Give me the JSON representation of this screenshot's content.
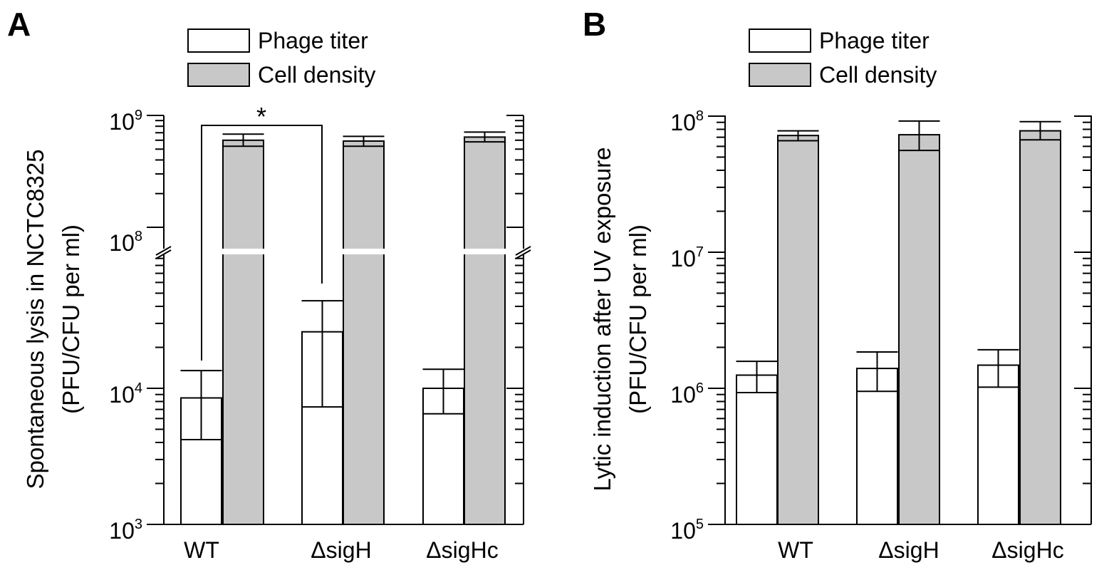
{
  "figure": {
    "legend": {
      "phage_label": "Phage titer",
      "cell_label": "Cell density"
    },
    "colors": {
      "phage_fill": "#ffffff",
      "cell_fill": "#c8c8c8",
      "stroke": "#000000",
      "break_gap": "#ffffff"
    },
    "significance_marker": "*"
  },
  "chart_data": [
    {
      "type": "bar",
      "panel_label": "A",
      "title": "",
      "ylabel_line1": "Spontaneous lysis in NCTC8325",
      "ylabel_line2": "(PFU/CFU per ml)",
      "y_scale": "log",
      "y_axis_break": true,
      "y_segments": [
        {
          "ylim": [
            1000,
            50000
          ]
        },
        {
          "ylim": [
            80000000,
            1000000000
          ]
        }
      ],
      "y_ticks": [
        {
          "value": 1000,
          "label_base": "10",
          "label_exp": "3"
        },
        {
          "value": 10000,
          "label_base": "10",
          "label_exp": "4"
        },
        {
          "value": 100000000,
          "label_base": "10",
          "label_exp": "8"
        },
        {
          "value": 1000000000,
          "label_base": "10",
          "label_exp": "9"
        }
      ],
      "categories": [
        "WT",
        "ΔsigH",
        "ΔsigHc"
      ],
      "series": [
        {
          "name": "Phage titer",
          "values": [
            8500,
            26000,
            10000
          ],
          "err_low": [
            4200,
            7300,
            6500
          ],
          "err_high": [
            13500,
            44000,
            13800
          ]
        },
        {
          "name": "Cell density",
          "values": [
            600000000,
            590000000,
            640000000
          ],
          "err_low": [
            530000000,
            530000000,
            580000000
          ],
          "err_high": [
            680000000,
            650000000,
            710000000
          ]
        }
      ],
      "legend_position": "top",
      "grid": false,
      "significance": {
        "from_category": 0,
        "to_category": 1,
        "marker": "*"
      }
    },
    {
      "type": "bar",
      "panel_label": "B",
      "title": "",
      "ylabel_line1": "Lytic induction after UV exposure",
      "ylabel_line2": "(PFU/CFU per ml)",
      "y_scale": "log",
      "ylim": [
        100000,
        100000000
      ],
      "y_ticks": [
        {
          "value": 100000,
          "label_base": "10",
          "label_exp": "5"
        },
        {
          "value": 1000000,
          "label_base": "10",
          "label_exp": "6"
        },
        {
          "value": 10000000,
          "label_base": "10",
          "label_exp": "7"
        },
        {
          "value": 100000000,
          "label_base": "10",
          "label_exp": "8"
        }
      ],
      "categories": [
        "WT",
        "ΔsigH",
        "ΔsigHc"
      ],
      "series": [
        {
          "name": "Phage titer",
          "values": [
            1250000,
            1400000,
            1480000
          ],
          "err_low": [
            930000,
            950000,
            1020000
          ],
          "err_high": [
            1580000,
            1850000,
            1920000
          ]
        },
        {
          "name": "Cell density",
          "values": [
            72000000,
            73000000,
            78000000
          ],
          "err_low": [
            66000000,
            56000000,
            67000000
          ],
          "err_high": [
            78000000,
            92000000,
            91000000
          ]
        }
      ],
      "legend_position": "top",
      "grid": false
    }
  ]
}
